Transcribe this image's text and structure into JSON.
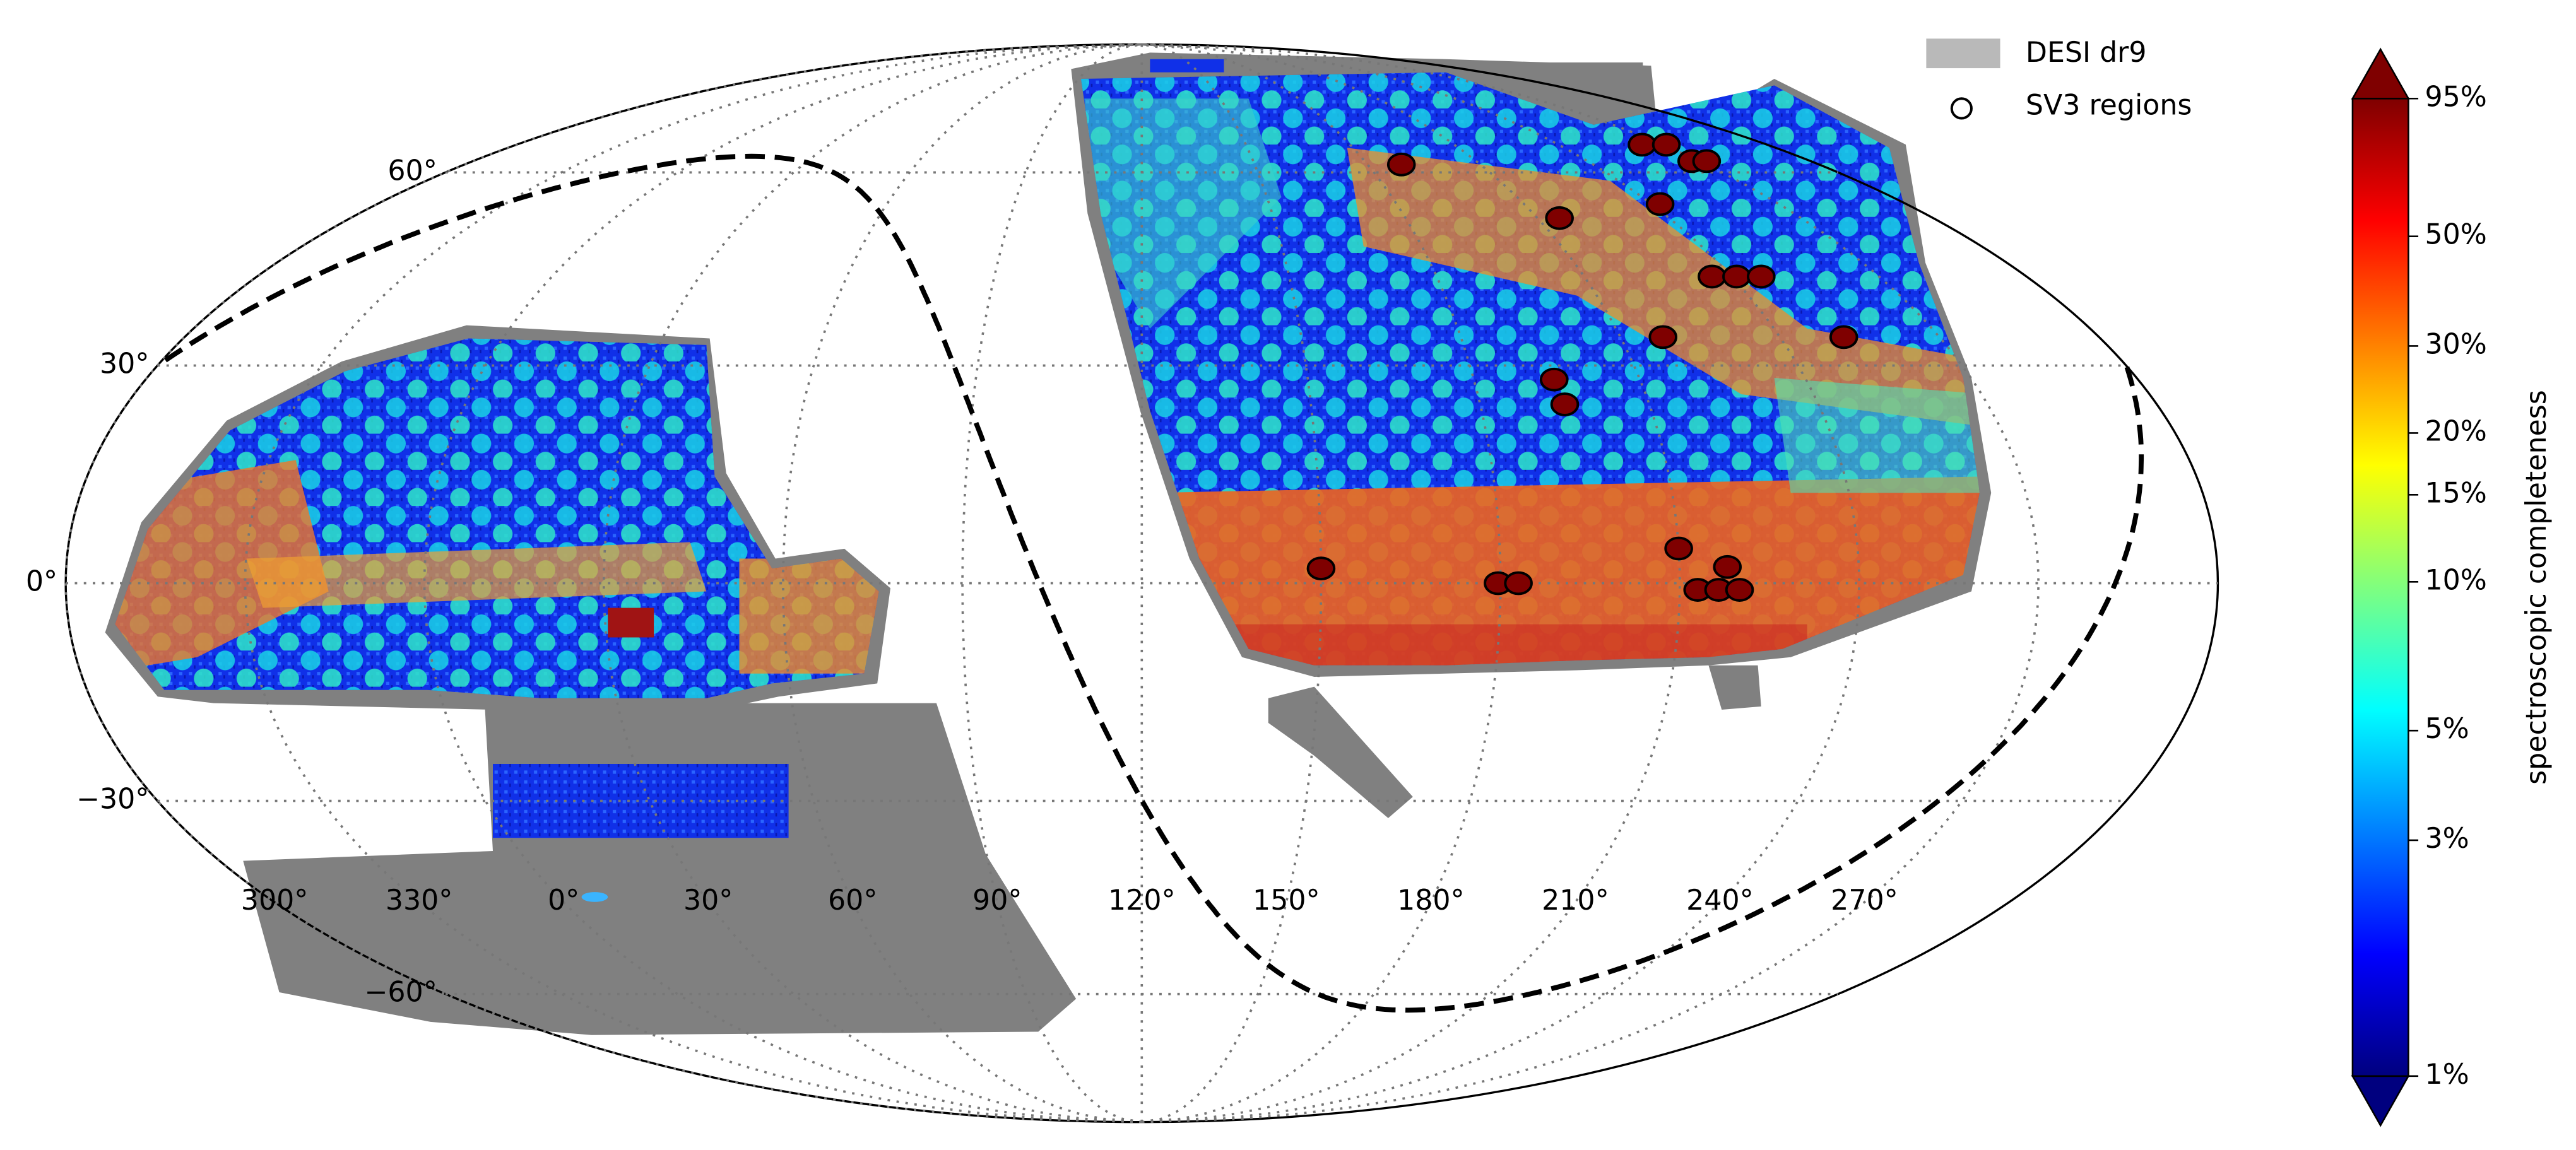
{
  "chart_data": {
    "type": "scatter",
    "projection": "mollweide",
    "xlim": [
      -60,
      300
    ],
    "ylim": [
      -90,
      90
    ],
    "xticks": [
      {
        "value": 330,
        "label": "330°"
      },
      {
        "value": 0,
        "label": "0°"
      },
      {
        "value": 30,
        "label": "30°"
      },
      {
        "value": 60,
        "label": "60°"
      },
      {
        "value": 90,
        "label": "90°"
      },
      {
        "value": 120,
        "label": "120°"
      },
      {
        "value": 150,
        "label": "150°"
      },
      {
        "value": 180,
        "label": "180°"
      },
      {
        "value": 210,
        "label": "210°"
      },
      {
        "value": 240,
        "label": "240°"
      },
      {
        "value": 270,
        "label": "270°"
      },
      {
        "value": 300,
        "label": "300°"
      }
    ],
    "yticks": [
      {
        "value": 60,
        "label": "60°"
      },
      {
        "value": 30,
        "label": "30°"
      },
      {
        "value": 0,
        "label": "0°"
      },
      {
        "value": -30,
        "label": "−30°"
      },
      {
        "value": -60,
        "label": "−60°"
      }
    ],
    "grid": true,
    "legend": "upper right",
    "series": [
      {
        "name": "DESI dr9",
        "color": "#808080"
      },
      {
        "name": "SV3 regions",
        "color": "#7f0000",
        "x": [
          189,
          215,
          264,
          271,
          268,
          272,
          242,
          236,
          241,
          246,
          252,
          218,
          194.5,
          195,
          150,
          179.6,
          183,
          210,
          218,
          213,
          216.5,
          220
        ],
        "values": [
          61.4,
          52.3,
          65,
          65,
          62,
          62,
          54.6,
          43.1,
          43.1,
          43.1,
          34.1,
          34.1,
          28,
          24.5,
          2,
          0,
          0,
          4.7,
          2.2,
          -0.9,
          -0.9,
          -0.9
        ]
      }
    ],
    "colorbar": {
      "label": "spectroscopic completeness",
      "colormap": "jet",
      "scale": "log",
      "lim": [
        1,
        95
      ],
      "ticks": [
        {
          "value": 1,
          "label": "1%"
        },
        {
          "value": 3,
          "label": "3%"
        },
        {
          "value": 5,
          "label": "5%"
        },
        {
          "value": 10,
          "label": "10%"
        },
        {
          "value": 15,
          "label": "15%"
        },
        {
          "value": 20,
          "label": "20%"
        },
        {
          "value": 30,
          "label": "30%"
        },
        {
          "value": 50,
          "label": "50%"
        },
        {
          "value": 95,
          "label": "95%"
        }
      ]
    }
  }
}
